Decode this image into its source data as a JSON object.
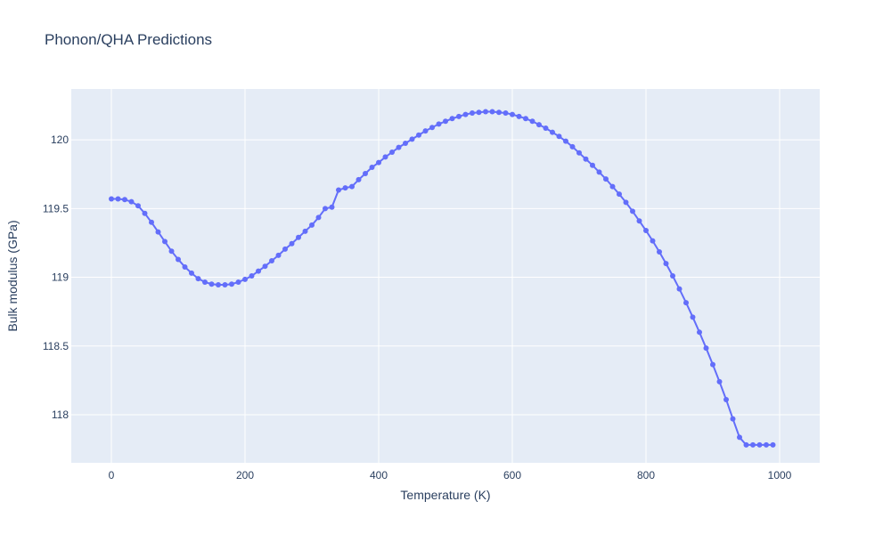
{
  "chart_data": {
    "type": "line",
    "title": "Phonon/QHA Predictions",
    "xlabel": "Temperature (K)",
    "ylabel": "Bulk modulus (GPa)",
    "xlim": [
      -60,
      1060
    ],
    "ylim": [
      117.65,
      120.37
    ],
    "x_ticks": [
      0,
      200,
      400,
      600,
      800,
      1000
    ],
    "y_ticks": [
      118,
      118.5,
      119,
      119.5,
      120
    ],
    "x_tick_labels": [
      "0",
      "200",
      "400",
      "600",
      "800",
      "1000"
    ],
    "y_tick_labels": [
      "118",
      "118.5",
      "119",
      "119.5",
      "120"
    ],
    "grid": true,
    "series": [
      {
        "color": "#636efa",
        "x": [
          0,
          10,
          20,
          30,
          40,
          50,
          60,
          70,
          80,
          90,
          100,
          110,
          120,
          130,
          140,
          150,
          160,
          170,
          180,
          190,
          200,
          210,
          220,
          230,
          240,
          250,
          260,
          270,
          280,
          290,
          300,
          310,
          320,
          330,
          340,
          350,
          360,
          370,
          380,
          390,
          400,
          410,
          420,
          430,
          440,
          450,
          460,
          470,
          480,
          490,
          500,
          510,
          520,
          530,
          540,
          550,
          560,
          570,
          580,
          590,
          600,
          610,
          620,
          630,
          640,
          650,
          660,
          670,
          680,
          690,
          700,
          710,
          720,
          730,
          740,
          750,
          760,
          770,
          780,
          790,
          800,
          810,
          820,
          830,
          840,
          850,
          860,
          870,
          880,
          890,
          900,
          910,
          920,
          930,
          940,
          950,
          960,
          970,
          980,
          990
        ],
        "y": [
          119.57,
          119.57,
          119.565,
          119.55,
          119.52,
          119.465,
          119.4,
          119.33,
          119.26,
          119.19,
          119.13,
          119.075,
          119.03,
          118.99,
          118.965,
          118.95,
          118.945,
          118.945,
          118.95,
          118.965,
          118.985,
          119.01,
          119.045,
          119.08,
          119.12,
          119.16,
          119.205,
          119.245,
          119.29,
          119.335,
          119.38,
          119.435,
          119.5,
          119.51,
          119.635,
          119.65,
          119.66,
          119.71,
          119.755,
          119.8,
          119.835,
          119.875,
          119.91,
          119.945,
          119.975,
          120.005,
          120.035,
          120.065,
          120.09,
          120.115,
          120.135,
          120.155,
          120.17,
          120.185,
          120.195,
          120.2,
          120.205,
          120.205,
          120.2,
          120.195,
          120.185,
          120.17,
          120.155,
          120.135,
          120.11,
          120.085,
          120.055,
          120.025,
          119.99,
          119.95,
          119.905,
          119.86,
          119.815,
          119.765,
          119.715,
          119.66,
          119.605,
          119.545,
          119.48,
          119.41,
          119.34,
          119.265,
          119.185,
          119.1,
          119.01,
          118.915,
          118.815,
          118.71,
          118.6,
          118.485,
          118.365,
          118.24,
          118.11,
          117.97,
          117.835,
          117.78,
          117.78,
          117.78,
          117.78,
          117.78
        ]
      }
    ]
  }
}
